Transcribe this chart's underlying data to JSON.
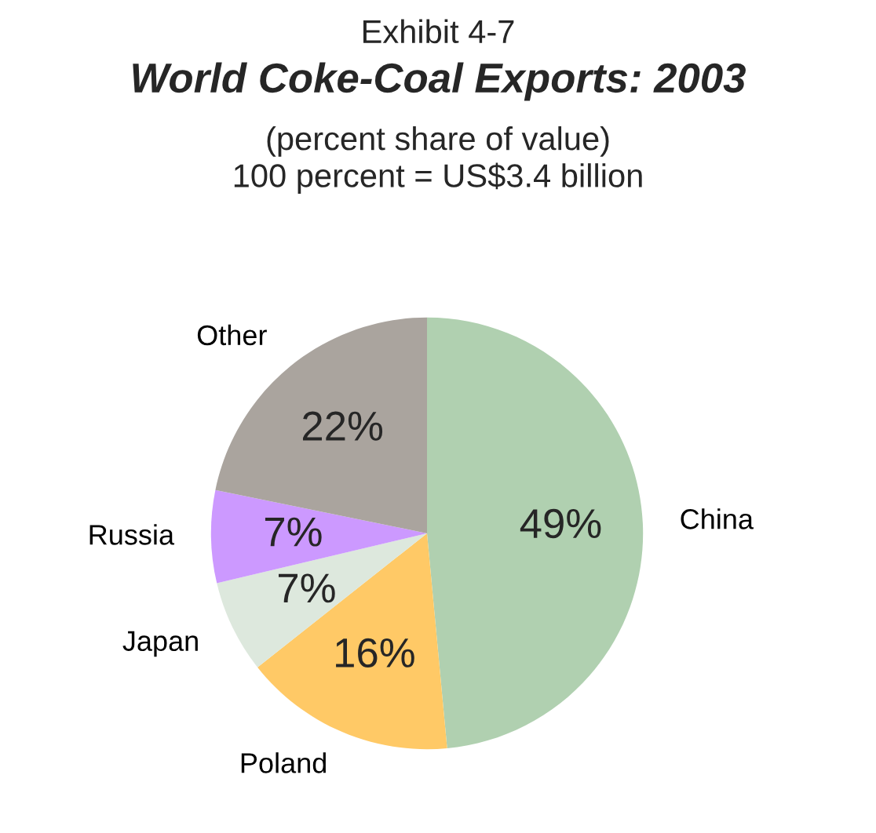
{
  "chart_data": {
    "type": "pie",
    "title": "World Coke-Coal Exports: 2003",
    "subtitle": "(percent share of value)\n100 percent = US$3.4 billion",
    "annotations": [
      "Exhibit 4-7"
    ],
    "categories": [
      "China",
      "Poland",
      "Japan",
      "Russia",
      "Other"
    ],
    "values": [
      49,
      16,
      7,
      7,
      22
    ],
    "value_labels": [
      "49%",
      "16%",
      "7%",
      "7%",
      "22%"
    ],
    "colors": [
      "#b0d0b0",
      "#ffc966",
      "#dde8dd",
      "#cc99ff",
      "#aaa49e"
    ],
    "legend": false
  }
}
